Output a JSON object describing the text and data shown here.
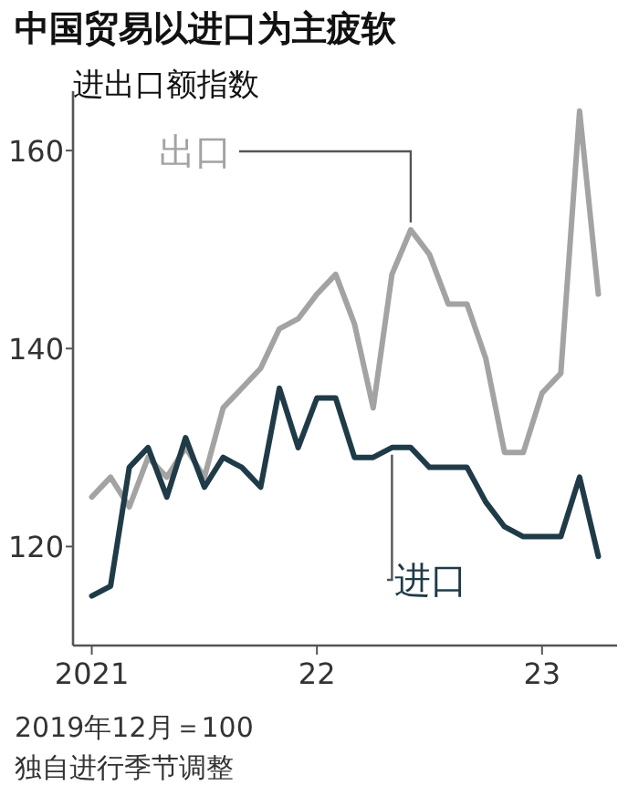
{
  "chart_data": {
    "type": "line",
    "title": "中国贸易以进口为主疲软",
    "subtitle": "进出口额指数",
    "x": [
      "2021-01",
      "2021-02",
      "2021-03",
      "2021-04",
      "2021-05",
      "2021-06",
      "2021-07",
      "2021-08",
      "2021-09",
      "2021-10",
      "2021-11",
      "2021-12",
      "2022-01",
      "2022-02",
      "2022-03",
      "2022-04",
      "2022-05",
      "2022-06",
      "2022-07",
      "2022-08",
      "2022-09",
      "2022-10",
      "2022-11",
      "2022-12",
      "2023-01",
      "2023-02",
      "2023-03",
      "2023-04"
    ],
    "series": [
      {
        "name": "出口",
        "color": "#a3a3a3",
        "values": [
          125,
          127,
          124,
          129,
          127,
          130,
          127,
          134,
          136,
          138,
          142,
          143,
          145.5,
          147.5,
          142.5,
          134,
          147.5,
          152,
          149.5,
          144.5,
          144.5,
          139,
          129.5,
          129.5,
          135.5,
          137.5,
          164,
          145.5
        ]
      },
      {
        "name": "进口",
        "color": "#1f3b47",
        "values": [
          115,
          116,
          128,
          130,
          125,
          131,
          126,
          129,
          128,
          126,
          136,
          130,
          135,
          135,
          129,
          129,
          130,
          130,
          128,
          128,
          128,
          124.5,
          122,
          121,
          121,
          121,
          127,
          119
        ]
      }
    ],
    "xlim": [
      "2020-12",
      "2023-05"
    ],
    "xticks": [
      {
        "value": "2021-01",
        "label": "2021"
      },
      {
        "value": "2022-01",
        "label": "22"
      },
      {
        "value": "2023-01",
        "label": "23"
      }
    ],
    "ylim": [
      110,
      166
    ],
    "yticks": [
      120,
      140,
      160
    ],
    "grid": false,
    "legend": false,
    "line_style": "solid",
    "marker": "none",
    "annotations": [
      "2019年12月＝100",
      "独自进行季节调整"
    ]
  }
}
